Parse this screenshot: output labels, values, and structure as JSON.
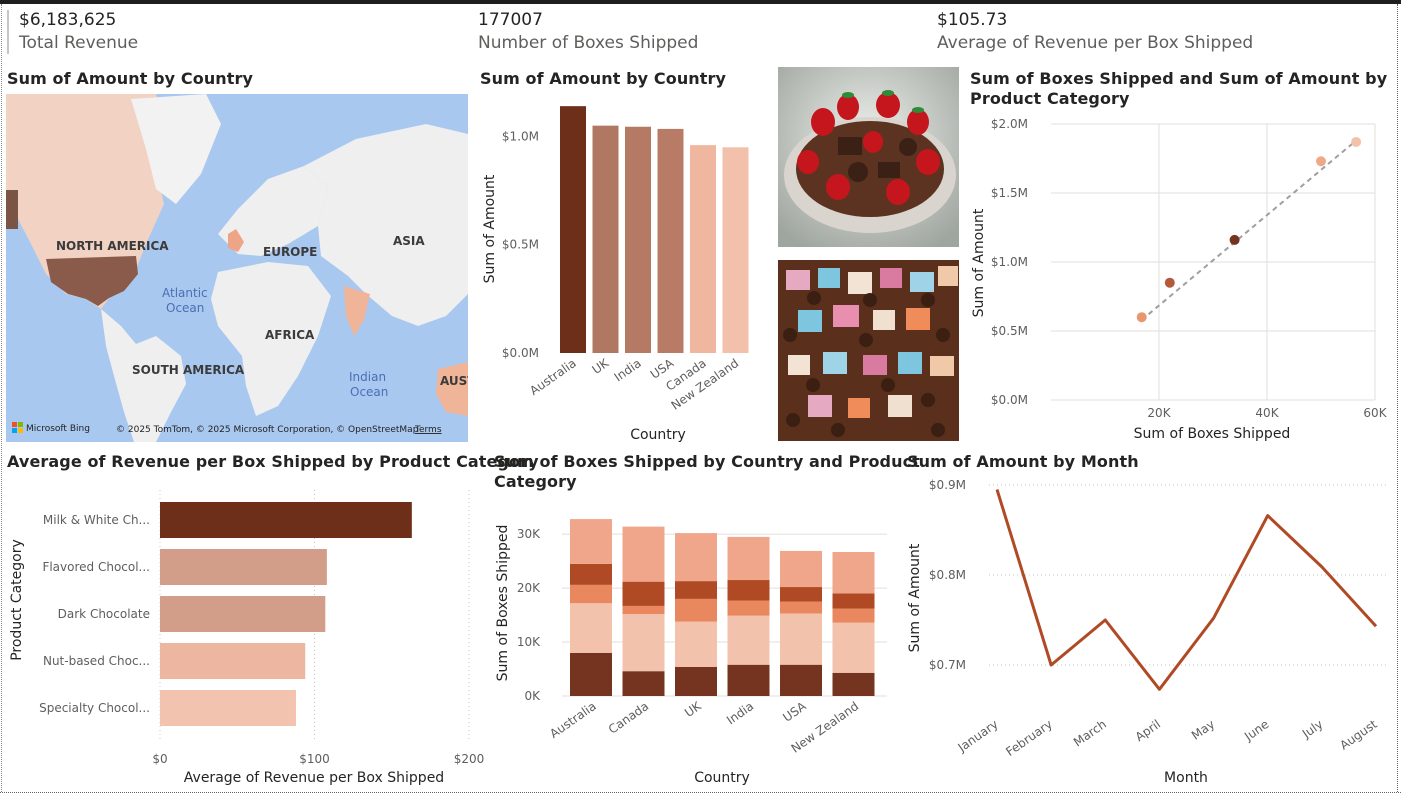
{
  "kpis": {
    "total_revenue": {
      "value": "$6,183,625",
      "label": "Total Revenue"
    },
    "boxes_shipped": {
      "value": "177007",
      "label": "Number of Boxes Shipped"
    },
    "avg_revenue": {
      "value": "$105.73",
      "label": "Average of Revenue per Box Shipped"
    }
  },
  "map_visual": {
    "title": "Sum of Amount by Country",
    "continents": [
      "NORTH AMERICA",
      "EUROPE",
      "ASIA",
      "AFRICA",
      "SOUTH AMERICA",
      "AUST"
    ],
    "oceans": [
      [
        "Atlantic",
        "Ocean"
      ],
      [
        "Indian",
        "Ocean"
      ]
    ],
    "logo": "Microsoft Bing",
    "attribution": "© 2025 TomTom, © 2025 Microsoft Corporation, © OpenStreetMap",
    "terms": "Terms"
  },
  "bar_country": {
    "title": "Sum of Amount by Country",
    "xlabel": "Country",
    "ylabel": "Sum of Amount",
    "ticks": [
      "$0.0M",
      "$0.5M",
      "$1.0M"
    ]
  },
  "scatter": {
    "title_line1": "Sum of Boxes Shipped and Sum of Amount by",
    "title_line2": "Product Category",
    "xlabel": "Sum of Boxes Shipped",
    "ylabel": "Sum of Amount",
    "xticks": [
      "20K",
      "40K",
      "60K"
    ],
    "yticks": [
      "$0.0M",
      "$0.5M",
      "$1.0M",
      "$1.5M",
      "$2.0M"
    ]
  },
  "hbar": {
    "title": "Average of Revenue per Box Shipped by Product Category",
    "xlabel": "Average of Revenue per Box Shipped",
    "ylabel": "Product Category",
    "ticks": [
      "$0",
      "$100",
      "$200"
    ]
  },
  "stacked": {
    "title_line1": "Sum of Boxes Shipped by Country and Product",
    "title_line2": "Category",
    "xlabel": "Country",
    "ylabel": "Sum of Boxes Shipped",
    "ticks": [
      "0K",
      "10K",
      "20K",
      "30K"
    ]
  },
  "line": {
    "title": "Sum of Amount by Month",
    "xlabel": "Month",
    "ylabel": "Sum of Amount",
    "ticks": [
      "$0.7M",
      "$0.8M",
      "$0.9M"
    ]
  },
  "chart_data": [
    {
      "type": "bar",
      "title": "Sum of Amount by Country",
      "xlabel": "Country",
      "ylabel": "Sum of Amount",
      "categories": [
        "Australia",
        "UK",
        "India",
        "USA",
        "Canada",
        "New Zealand"
      ],
      "values": [
        1140000,
        1050000,
        1045000,
        1035000,
        960000,
        950000
      ],
      "colors": [
        "#6e2f1a",
        "#b07762",
        "#b57a64",
        "#b87c66",
        "#f0b7a0",
        "#f3c1ab"
      ],
      "ylim": [
        0,
        1150000
      ]
    },
    {
      "type": "scatter",
      "title": "Sum of Boxes Shipped and Sum of Amount by Product Category",
      "xlabel": "Sum of Boxes Shipped",
      "ylabel": "Sum of Amount",
      "points": [
        {
          "x": 16800,
          "y": 600000,
          "color": "#e9956d"
        },
        {
          "x": 22000,
          "y": 850000,
          "color": "#b35a3b"
        },
        {
          "x": 34000,
          "y": 1160000,
          "color": "#74341f"
        },
        {
          "x": 50000,
          "y": 1730000,
          "color": "#efa98a"
        },
        {
          "x": 56500,
          "y": 1870000,
          "color": "#f3c2ad"
        }
      ],
      "trend": [
        [
          16800,
          580000
        ],
        [
          56500,
          1880000
        ]
      ],
      "xlim": [
        0,
        60000
      ],
      "ylim": [
        0,
        2000000
      ]
    },
    {
      "type": "bar",
      "orientation": "horizontal",
      "title": "Average of Revenue per Box Shipped by Product Category",
      "xlabel": "Average of Revenue per Box Shipped",
      "ylabel": "Product Category",
      "categories": [
        "Milk & White Ch...",
        "Flavored Chocol...",
        "Dark Chocolate",
        "Nut-based Choc...",
        "Specialty Chocol..."
      ],
      "values": [
        163,
        108,
        107,
        94,
        88
      ],
      "colors": [
        "#6e2f1a",
        "#d29e89",
        "#d29e89",
        "#ecb6a1",
        "#f2c3ae"
      ],
      "xlim": [
        0,
        200
      ]
    },
    {
      "type": "bar",
      "stacked": true,
      "title": "Sum of Boxes Shipped by Country and Product Category",
      "xlabel": "Country",
      "ylabel": "Sum of Boxes Shipped",
      "categories": [
        "Australia",
        "Canada",
        "UK",
        "India",
        "USA",
        "New Zealand"
      ],
      "series": [
        {
          "values": [
            8000,
            4600,
            5400,
            5800,
            5800,
            4300
          ],
          "color": "#74341f"
        },
        {
          "values": [
            9200,
            10600,
            8400,
            9100,
            9500,
            9300
          ],
          "color": "#f3c2ad"
        },
        {
          "values": [
            3400,
            1500,
            4200,
            2800,
            2200,
            2600
          ],
          "color": "#e9875f"
        },
        {
          "values": [
            3900,
            4500,
            3300,
            3800,
            2700,
            2800
          ],
          "color": "#b04a25"
        },
        {
          "values": [
            8300,
            10200,
            8900,
            8000,
            6700,
            7700
          ],
          "color": "#f0a68a"
        }
      ],
      "ylim": [
        0,
        33000
      ]
    },
    {
      "type": "line",
      "title": "Sum of Amount by Month",
      "xlabel": "Month",
      "ylabel": "Sum of Amount",
      "categories": [
        "January",
        "February",
        "March",
        "April",
        "May",
        "June",
        "July",
        "August"
      ],
      "values": [
        895000,
        700000,
        750000,
        673000,
        752000,
        866000,
        809000,
        743000
      ],
      "color": "#b04a25",
      "ylim": [
        0.66,
        0.9
      ]
    }
  ]
}
